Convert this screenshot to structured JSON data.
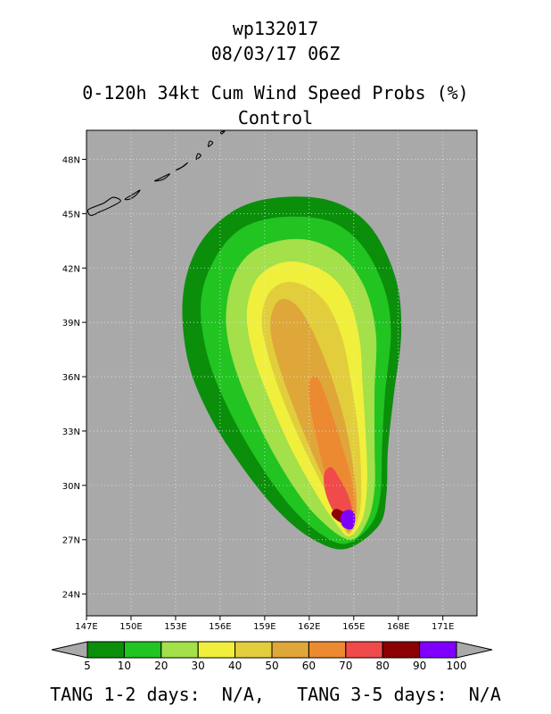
{
  "header": {
    "storm_id": "wp132017",
    "datetime": "08/03/17 06Z",
    "product": "0-120h 34kt Cum Wind Speed Probs (%)",
    "run": "Control"
  },
  "colors": {
    "ocean": "#a9a9a9",
    "levels": [
      "#0b8f0b",
      "#21c421",
      "#a3e04a",
      "#f0f03c",
      "#e2ce3c",
      "#dfa73a",
      "#ec8a32",
      "#f04a4a",
      "#8b0000",
      "#7f00ff"
    ],
    "coast": "#000000"
  },
  "chart_data": {
    "type": "heatmap",
    "title": "0-120h 34kt Cum Wind Speed Probs (%)",
    "subtitle": "Control",
    "xlim": [
      147,
      173.3
    ],
    "ylim": [
      22.8,
      49.6
    ],
    "xticks": [
      147,
      150,
      153,
      156,
      159,
      162,
      165,
      168,
      171
    ],
    "xtick_labels": [
      "147E",
      "150E",
      "153E",
      "156E",
      "159E",
      "162E",
      "165E",
      "168E",
      "171E"
    ],
    "yticks": [
      24,
      27,
      30,
      33,
      36,
      39,
      42,
      45,
      48
    ],
    "ytick_labels": [
      "24N",
      "27N",
      "30N",
      "33N",
      "36N",
      "39N",
      "42N",
      "45N",
      "48N"
    ],
    "grid": true,
    "colorbar": {
      "levels": [
        5,
        10,
        20,
        30,
        40,
        50,
        60,
        70,
        80,
        90,
        100
      ],
      "labels": [
        "5",
        "10",
        "20",
        "30",
        "40",
        "50",
        "60",
        "70",
        "80",
        "90",
        "100"
      ]
    },
    "contours": [
      {
        "level": 5,
        "polygon": [
          [
            164.5,
            26.5
          ],
          [
            166.7,
            27.8
          ],
          [
            167.2,
            29.5
          ],
          [
            167.3,
            32.0
          ],
          [
            167.7,
            35.0
          ],
          [
            168.2,
            38.5
          ],
          [
            167.8,
            41.5
          ],
          [
            166.1,
            44.3
          ],
          [
            163.5,
            45.7
          ],
          [
            160.0,
            45.9
          ],
          [
            157.0,
            45.2
          ],
          [
            154.6,
            43.3
          ],
          [
            153.5,
            40.5
          ],
          [
            153.8,
            37.0
          ],
          [
            155.2,
            34.0
          ],
          [
            157.5,
            31.0
          ],
          [
            160.0,
            28.5
          ],
          [
            162.3,
            27.0
          ]
        ]
      },
      {
        "level": 10,
        "polygon": [
          [
            164.6,
            26.8
          ],
          [
            166.2,
            27.9
          ],
          [
            166.8,
            29.5
          ],
          [
            166.9,
            32.0
          ],
          [
            167.1,
            35.0
          ],
          [
            167.5,
            38.5
          ],
          [
            167.0,
            41.0
          ],
          [
            165.5,
            43.3
          ],
          [
            163.3,
            44.6
          ],
          [
            160.0,
            44.8
          ],
          [
            157.3,
            44.1
          ],
          [
            155.5,
            42.3
          ],
          [
            154.7,
            40.0
          ],
          [
            155.2,
            37.0
          ],
          [
            156.7,
            34.0
          ],
          [
            158.8,
            31.0
          ],
          [
            161.0,
            28.6
          ],
          [
            163.0,
            27.2
          ]
        ]
      },
      {
        "level": 20,
        "polygon": [
          [
            164.7,
            27.0
          ],
          [
            165.9,
            28.0
          ],
          [
            166.4,
            29.8
          ],
          [
            166.4,
            32.3
          ],
          [
            166.4,
            35.2
          ],
          [
            166.5,
            38.3
          ],
          [
            165.8,
            40.8
          ],
          [
            164.3,
            42.6
          ],
          [
            162.2,
            43.5
          ],
          [
            160.0,
            43.5
          ],
          [
            158.0,
            42.8
          ],
          [
            156.8,
            41.3
          ],
          [
            156.4,
            39.0
          ],
          [
            157.0,
            36.5
          ],
          [
            158.5,
            33.5
          ],
          [
            160.5,
            30.5
          ],
          [
            162.5,
            28.3
          ]
        ]
      },
      {
        "level": 30,
        "polygon": [
          [
            164.7,
            27.2
          ],
          [
            165.6,
            28.2
          ],
          [
            165.9,
            30.2
          ],
          [
            165.8,
            32.8
          ],
          [
            165.6,
            35.5
          ],
          [
            165.4,
            38.0
          ],
          [
            164.7,
            40.2
          ],
          [
            163.4,
            41.6
          ],
          [
            161.5,
            42.3
          ],
          [
            159.8,
            42.2
          ],
          [
            158.4,
            41.3
          ],
          [
            157.8,
            39.5
          ],
          [
            158.2,
            37.3
          ],
          [
            159.3,
            34.8
          ],
          [
            160.8,
            32.0
          ],
          [
            162.5,
            29.5
          ],
          [
            163.8,
            27.9
          ]
        ]
      },
      {
        "level": 40,
        "polygon": [
          [
            164.7,
            27.3
          ],
          [
            165.4,
            28.5
          ],
          [
            165.5,
            30.5
          ],
          [
            165.3,
            33.0
          ],
          [
            164.8,
            35.8
          ],
          [
            164.2,
            38.2
          ],
          [
            163.2,
            40.0
          ],
          [
            161.8,
            41.0
          ],
          [
            160.3,
            41.2
          ],
          [
            159.2,
            40.5
          ],
          [
            158.8,
            39.0
          ],
          [
            159.3,
            37.0
          ],
          [
            160.2,
            34.8
          ],
          [
            161.5,
            32.3
          ],
          [
            162.9,
            30.0
          ],
          [
            164.0,
            28.2
          ]
        ]
      },
      {
        "level": 50,
        "polygon": [
          [
            164.7,
            27.4
          ],
          [
            165.2,
            28.7
          ],
          [
            165.0,
            30.8
          ],
          [
            164.4,
            33.5
          ],
          [
            163.4,
            36.2
          ],
          [
            162.3,
            38.4
          ],
          [
            161.3,
            39.8
          ],
          [
            160.3,
            40.3
          ],
          [
            159.6,
            39.8
          ],
          [
            159.4,
            38.5
          ],
          [
            160.0,
            36.5
          ],
          [
            161.0,
            34.2
          ],
          [
            162.3,
            31.6
          ],
          [
            163.5,
            29.5
          ],
          [
            164.3,
            28.0
          ]
        ]
      },
      {
        "level": 60,
        "polygon": [
          [
            164.7,
            27.5
          ],
          [
            165.1,
            28.7
          ],
          [
            164.8,
            30.5
          ],
          [
            164.1,
            32.5
          ],
          [
            163.3,
            34.5
          ],
          [
            162.6,
            35.9
          ],
          [
            162.0,
            35.7
          ],
          [
            162.1,
            34.2
          ],
          [
            162.6,
            32.2
          ],
          [
            163.2,
            30.2
          ],
          [
            163.9,
            28.5
          ]
        ]
      },
      {
        "level": 70,
        "polygon": [
          [
            164.7,
            27.6
          ],
          [
            164.9,
            28.5
          ],
          [
            164.6,
            29.5
          ],
          [
            164.1,
            30.3
          ],
          [
            163.5,
            31.0
          ],
          [
            163.0,
            30.6
          ],
          [
            163.1,
            29.6
          ],
          [
            163.6,
            28.6
          ],
          [
            164.2,
            27.9
          ]
        ]
      },
      {
        "level": 80,
        "polygon": [
          [
            164.8,
            27.8
          ],
          [
            164.9,
            28.3
          ],
          [
            164.4,
            28.5
          ],
          [
            163.8,
            28.7
          ],
          [
            163.5,
            28.4
          ],
          [
            164.0,
            28.0
          ]
        ]
      },
      {
        "level": 90,
        "polygon": [
          [
            164.3,
            27.7
          ],
          [
            164.9,
            27.6
          ],
          [
            165.1,
            28.2
          ],
          [
            164.9,
            28.6
          ],
          [
            164.4,
            28.6
          ],
          [
            164.1,
            28.2
          ]
        ]
      }
    ],
    "coastline": [
      [
        [
          147.1,
          45.2
        ],
        [
          147.6,
          45.4
        ],
        [
          148.2,
          45.6
        ],
        [
          148.8,
          45.9
        ],
        [
          149.3,
          45.7
        ],
        [
          148.7,
          45.4
        ],
        [
          147.9,
          45.1
        ],
        [
          147.3,
          44.9
        ]
      ],
      [
        [
          149.6,
          45.8
        ],
        [
          150.2,
          46.1
        ],
        [
          150.6,
          46.3
        ],
        [
          150.3,
          46.0
        ],
        [
          149.9,
          45.8
        ]
      ],
      [
        [
          151.6,
          46.8
        ],
        [
          152.2,
          46.9
        ],
        [
          152.6,
          47.2
        ],
        [
          152.1,
          47.0
        ]
      ],
      [
        [
          153.0,
          47.4
        ],
        [
          153.5,
          47.6
        ],
        [
          153.8,
          47.8
        ],
        [
          153.3,
          47.5
        ]
      ],
      [
        [
          154.4,
          48.0
        ],
        [
          154.7,
          48.2
        ],
        [
          154.5,
          48.3
        ]
      ],
      [
        [
          155.2,
          48.7
        ],
        [
          155.5,
          48.9
        ],
        [
          155.3,
          49.0
        ]
      ],
      [
        [
          156.1,
          49.4
        ],
        [
          156.3,
          49.55
        ],
        [
          156.05,
          49.5
        ]
      ]
    ]
  },
  "footer": {
    "tang12_label": "TANG 1-2 days:",
    "tang12_value": "N/A,",
    "tang35_label": "TANG 3-5 days:",
    "tang35_value": "N/A"
  }
}
